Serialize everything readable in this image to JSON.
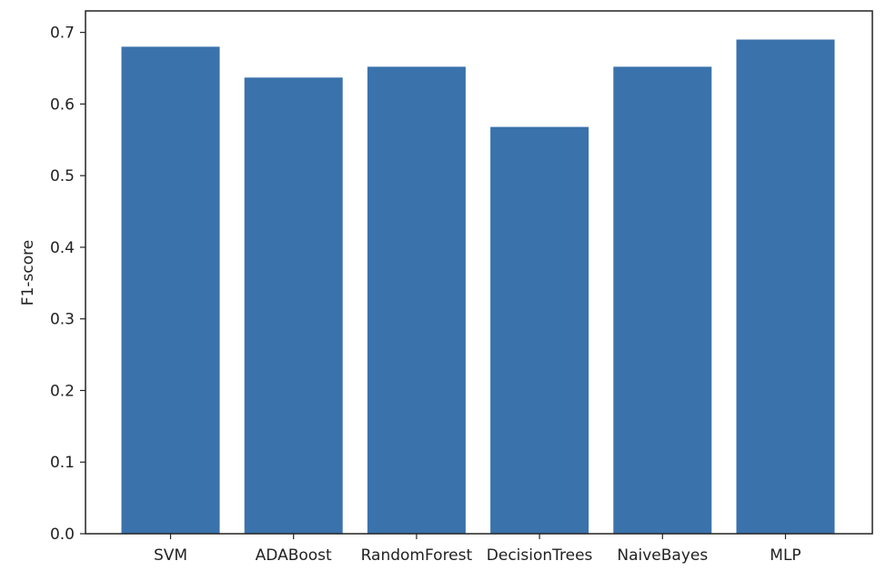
{
  "chart_data": {
    "type": "bar",
    "title": "",
    "xlabel": "",
    "ylabel": "F1-score",
    "categories": [
      "SVM",
      "ADABoost",
      "RandomForest",
      "DecisionTrees",
      "NaiveBayes",
      "MLP"
    ],
    "values": [
      0.68,
      0.637,
      0.652,
      0.568,
      0.652,
      0.69
    ],
    "ylim": [
      0,
      0.73
    ],
    "yticks": [
      "0.0",
      "0.1",
      "0.2",
      "0.3",
      "0.4",
      "0.5",
      "0.6",
      "0.7"
    ],
    "grid": false,
    "bar_color": "#3a72ac"
  }
}
